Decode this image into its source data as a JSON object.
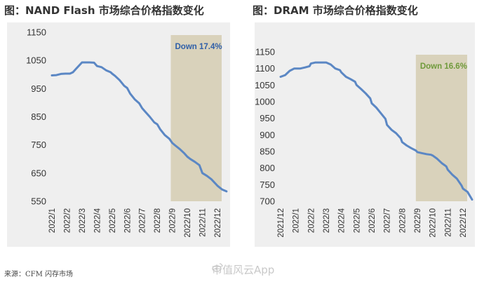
{
  "source_note": "来源：CFM 闪存市场",
  "watermark": "市值风云App",
  "colors": {
    "line": "#5b87c4",
    "band": "#d9d2bb",
    "annotation_left": "#2f5fa8",
    "annotation_right": "#6f9a3b",
    "panel_bg": "#efefef"
  },
  "icons": [
    "weibo-icon"
  ],
  "chart_data": [
    {
      "type": "line",
      "title": "图：NAND Flash 市场综合价格指数变化",
      "xlabel": "",
      "ylabel": "",
      "ylim": [
        550,
        1150
      ],
      "yticks": [
        1150,
        1050,
        950,
        850,
        750,
        650,
        550
      ],
      "x_categories": [
        "2022/1",
        "2022/2",
        "2022/3",
        "2022/4",
        "2022/5",
        "2022/6",
        "2022/7",
        "2022/8",
        "2022/9",
        "2022/10",
        "2022/11",
        "2022/12"
      ],
      "highlight": {
        "from": 8,
        "to": 12,
        "label": "Down 17.4%"
      },
      "series": [
        {
          "x": [
            0,
            0.3,
            0.6,
            0.9,
            1.0,
            1.2,
            1.4,
            1.6,
            2.0,
            2.2,
            2.5,
            2.8,
            3.0,
            3.3,
            3.6,
            3.9,
            4.0,
            4.2,
            4.5,
            4.8,
            5.0,
            5.2,
            5.5,
            5.8,
            6.0,
            6.2,
            6.5,
            6.8,
            7.0,
            7.2,
            7.5,
            7.8,
            8.0,
            8.2,
            8.5,
            8.8,
            9.0,
            9.2,
            9.5,
            9.8,
            10.0,
            10.3,
            10.6,
            11.0,
            11.3,
            11.6
          ],
          "values": [
            997,
            998,
            1002,
            1003,
            1003,
            1003,
            1008,
            1020,
            1043,
            1043,
            1043,
            1042,
            1030,
            1026,
            1015,
            1008,
            1003,
            995,
            980,
            960,
            952,
            932,
            912,
            898,
            880,
            868,
            850,
            830,
            823,
            805,
            785,
            772,
            757,
            748,
            735,
            720,
            708,
            700,
            690,
            678,
            650,
            640,
            628,
            605,
            592,
            585
          ]
        }
      ]
    },
    {
      "type": "line",
      "title": "图：DRAM 市场综合价格指数变化",
      "xlabel": "",
      "ylabel": "",
      "ylim": [
        700,
        1150
      ],
      "yticks": [
        1150,
        1100,
        1050,
        1000,
        950,
        900,
        850,
        800,
        750,
        700
      ],
      "x_categories": [
        "2021/12",
        "2022/1",
        "2022/2",
        "2022/3",
        "2022/4",
        "2022/5",
        "2022/6",
        "2022/7",
        "2022/8",
        "2022/9",
        "2022/10",
        "2022/11",
        "2022/12"
      ],
      "highlight": {
        "from": 9,
        "to": 13,
        "label": "Down 16.6%"
      },
      "series": [
        {
          "x": [
            0,
            0.3,
            0.6,
            0.9,
            1.0,
            1.3,
            1.6,
            1.9,
            2.0,
            2.3,
            2.6,
            3.0,
            3.3,
            3.6,
            3.9,
            4.0,
            4.3,
            4.6,
            4.9,
            5.0,
            5.3,
            5.6,
            5.9,
            6.0,
            6.3,
            6.6,
            6.9,
            7.0,
            7.3,
            7.6,
            7.9,
            8.0,
            8.3,
            8.6,
            8.9,
            9.0,
            9.3,
            9.6,
            9.9,
            10.0,
            10.3,
            10.6,
            10.9,
            11.0,
            11.3,
            11.6,
            11.9,
            12.0,
            12.3,
            12.6
          ],
          "values": [
            1075,
            1080,
            1093,
            1100,
            1100,
            1100,
            1103,
            1107,
            1115,
            1118,
            1118,
            1118,
            1112,
            1100,
            1095,
            1088,
            1075,
            1068,
            1060,
            1050,
            1038,
            1025,
            1010,
            995,
            982,
            965,
            948,
            930,
            915,
            905,
            890,
            878,
            868,
            860,
            853,
            848,
            845,
            842,
            840,
            838,
            828,
            815,
            805,
            795,
            780,
            768,
            748,
            738,
            728,
            705
          ]
        }
      ]
    }
  ]
}
